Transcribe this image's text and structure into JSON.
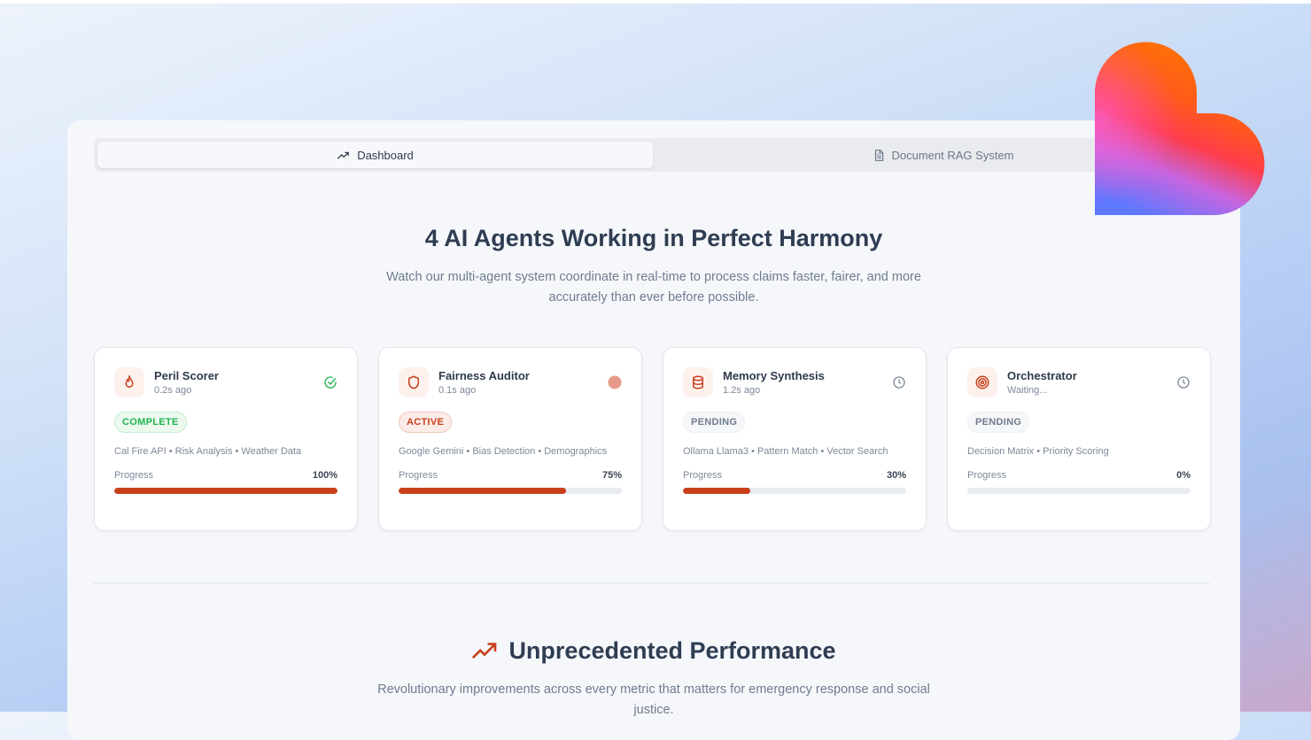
{
  "tabs": [
    {
      "label": "Dashboard",
      "icon": "trending-up-icon",
      "active": true
    },
    {
      "label": "Document RAG System",
      "icon": "document-icon",
      "active": false
    }
  ],
  "hero": {
    "title": "4 AI Agents Working in Perfect Harmony",
    "subtitle": "Watch our multi-agent system coordinate in real-time to process claims faster, fairer, and more accurately than ever before possible."
  },
  "agents": [
    {
      "name": "Peril Scorer",
      "time": "0.2s ago",
      "icon": "flame-icon",
      "status_icon": "check-circle-icon",
      "status": "COMPLETE",
      "tags": "Cal Fire API • Risk Analysis • Weather Data",
      "progress_label": "Progress",
      "progress": 100,
      "progress_text": "100%"
    },
    {
      "name": "Fairness Auditor",
      "time": "0.1s ago",
      "icon": "shield-icon",
      "status_icon": "active-dot-icon",
      "status": "ACTIVE",
      "tags": "Google Gemini • Bias Detection • Demographics",
      "progress_label": "Progress",
      "progress": 75,
      "progress_text": "75%"
    },
    {
      "name": "Memory Synthesis",
      "time": "1.2s ago",
      "icon": "database-icon",
      "status_icon": "clock-icon",
      "status": "PENDING",
      "tags": "Ollama Llama3 • Pattern Match • Vector Search",
      "progress_label": "Progress",
      "progress": 30,
      "progress_text": "30%"
    },
    {
      "name": "Orchestrator",
      "time": "Waiting...",
      "icon": "target-icon",
      "status_icon": "clock-icon",
      "status": "PENDING",
      "tags": "Decision Matrix • Priority Scoring",
      "progress_label": "Progress",
      "progress": 0,
      "progress_text": "0%"
    }
  ],
  "performance": {
    "title": "Unprecedented Performance",
    "subtitle": "Revolutionary improvements across every metric that matters for emergency response and social justice."
  },
  "colors": {
    "accent": "#c8401b",
    "complete": "#23b450",
    "text": "#2f3d52"
  }
}
